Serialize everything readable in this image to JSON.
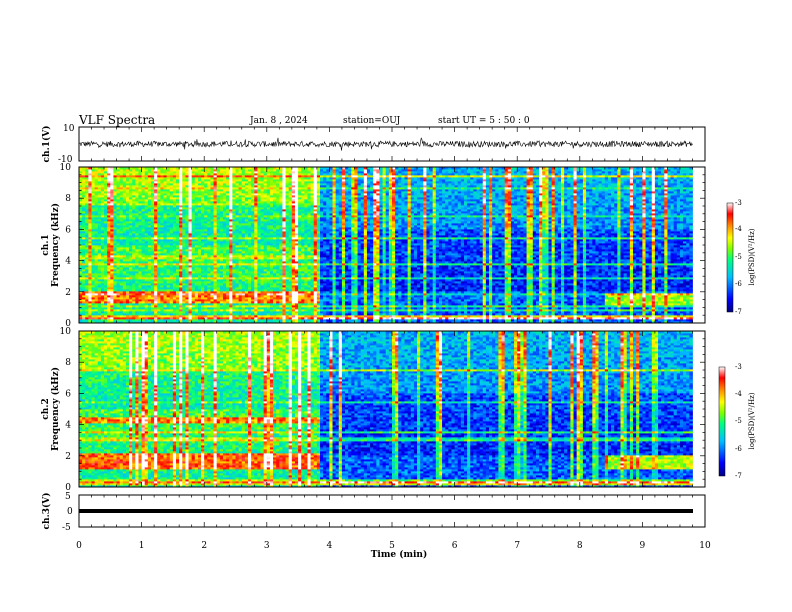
{
  "header": {
    "title": "VLF Spectra",
    "date": "Jan. 8 , 2024",
    "station": "station=OUJ",
    "start_ut": "start UT = 5 : 50 : 0"
  },
  "chart_data": [
    {
      "type": "line",
      "panel": "ch1-waveform",
      "ylabel": "ch.1(V)",
      "ylim": [
        -10,
        10
      ],
      "y_ticks": [
        "10",
        "-10"
      ],
      "x_range_min": [
        0,
        10
      ],
      "data_extent_min": [
        0,
        9.8
      ],
      "signal": "noise-like waveform centered on 0 V, amplitude about ±2 V with occasional spikes to about ±4 V"
    },
    {
      "type": "heatmap",
      "panel": "ch1-spectrogram",
      "ylabel": "ch.1\nFrequency (kHz)",
      "ylim": [
        0,
        10
      ],
      "y_ticks": [
        "0",
        "2",
        "4",
        "6",
        "8",
        "10"
      ],
      "x_range_min": [
        0,
        10
      ],
      "data_extent_min": [
        0,
        9.8
      ],
      "colorbar": {
        "label": "log(PSD)(V²/Hz)",
        "range": [
          -7,
          -3
        ],
        "ticks": [
          "-3",
          "-4",
          "-5",
          "-6",
          "-7"
        ]
      },
      "features": [
        {
          "t_min": [
            0.0,
            3.85
          ],
          "f_khz": [
            4.1,
            4.4
          ],
          "log_psd": -4.5,
          "desc": "band"
        },
        {
          "t_min": [
            0.0,
            3.85
          ],
          "f_khz": [
            1.3,
            2.1
          ],
          "log_psd": -3.8,
          "desc": "strong band"
        },
        {
          "t_min": [
            0.0,
            9.8
          ],
          "f_khz": [
            0.2,
            0.5
          ],
          "log_psd": -4.2,
          "desc": "low-frequency line"
        },
        {
          "t_min": [
            3.85,
            9.8
          ],
          "f_khz": [
            0,
            10
          ],
          "log_psd": -6.2,
          "desc": "weaker background"
        },
        {
          "t_min": [
            8.4,
            9.8
          ],
          "f_khz": [
            1.2,
            1.9
          ],
          "log_psd": -4.6,
          "desc": "band returns"
        }
      ]
    },
    {
      "type": "heatmap",
      "panel": "ch2-spectrogram",
      "ylabel": "ch.2\nFrequency (kHz)",
      "ylim": [
        0,
        10
      ],
      "y_ticks": [
        "0",
        "2",
        "4",
        "6",
        "8",
        "10"
      ],
      "x_range_min": [
        0,
        10
      ],
      "data_extent_min": [
        0,
        9.8
      ],
      "colorbar": {
        "label": "log(PSD)(V²/Hz)",
        "range": [
          -7,
          -3
        ],
        "ticks": [
          "-3",
          "-4",
          "-5",
          "-6",
          "-7"
        ]
      },
      "features": [
        {
          "t_min": [
            0.0,
            3.85
          ],
          "f_khz": [
            4.1,
            4.5
          ],
          "log_psd": -3.8,
          "desc": "strong band"
        },
        {
          "t_min": [
            0.0,
            3.85
          ],
          "f_khz": [
            1.2,
            2.2
          ],
          "log_psd": -3.7,
          "desc": "strong band"
        },
        {
          "t_min": [
            0.0,
            9.8
          ],
          "f_khz": [
            0.1,
            0.4
          ],
          "log_psd": -4.3,
          "desc": "low-frequency line"
        },
        {
          "t_min": [
            3.85,
            9.8
          ],
          "f_khz": [
            0,
            10
          ],
          "log_psd": -6.2,
          "desc": "weaker background"
        },
        {
          "t_min": [
            8.4,
            9.8
          ],
          "f_khz": [
            1.1,
            2.0
          ],
          "log_psd": -4.5,
          "desc": "band returns"
        }
      ]
    },
    {
      "type": "line",
      "panel": "ch3-waveform",
      "ylabel": "ch.3(V)",
      "ylim": [
        -5,
        5
      ],
      "y_ticks": [
        "5",
        "0",
        "-5"
      ],
      "x_range_min": [
        0,
        10
      ],
      "data_extent_min": [
        0,
        9.8
      ],
      "signal": "flat line at about 0 V"
    }
  ],
  "x_axis": {
    "label": "Time (min)",
    "ticks": [
      "0",
      "1",
      "2",
      "3",
      "4",
      "5",
      "6",
      "7",
      "8",
      "9",
      "10"
    ]
  },
  "colors": {
    "colormap": [
      "#000080",
      "#0000ff",
      "#00bfff",
      "#00ff7f",
      "#7fff00",
      "#ffff00",
      "#ff8000",
      "#ff0000",
      "#ffffff"
    ],
    "waveform": "#000000"
  }
}
